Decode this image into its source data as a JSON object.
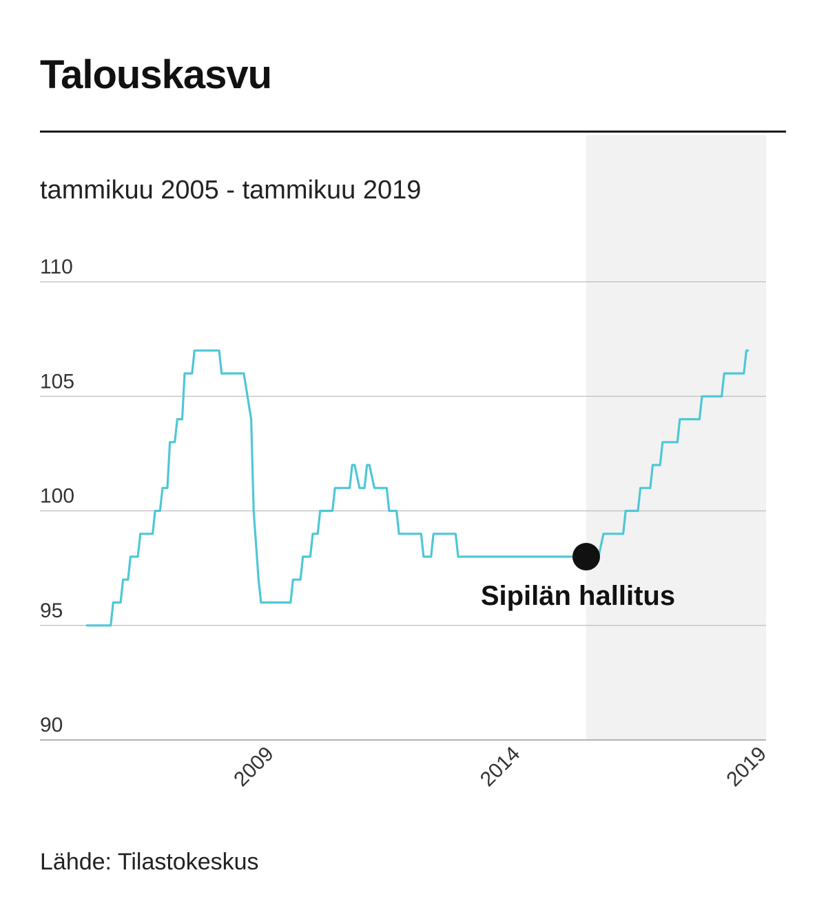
{
  "chart_data": {
    "type": "line",
    "title": "Talouskasvu",
    "subtitle": "tammikuu 2005 - tammikuu 2019",
    "source": "Lähde: Tilastokeskus",
    "ylim": [
      90,
      110
    ],
    "yticks": [
      90,
      95,
      100,
      105,
      110
    ],
    "xlim": [
      2005.2,
      2019.0
    ],
    "xticks": [
      2009,
      2014,
      2019
    ],
    "grid": true,
    "line_color": "#4ec7d6",
    "shade_color": "#f2f2f2",
    "shaded_period": {
      "start": 2015.35,
      "end": 2019.0
    },
    "annotation": {
      "label": "Sipilän hallitus",
      "x": 2015.35,
      "y": 98
    },
    "series": [
      {
        "points": [
          [
            2005.2,
            95
          ],
          [
            2005.7,
            95
          ],
          [
            2005.75,
            96
          ],
          [
            2005.9,
            96
          ],
          [
            2005.95,
            97
          ],
          [
            2006.05,
            97
          ],
          [
            2006.1,
            98
          ],
          [
            2006.25,
            98
          ],
          [
            2006.3,
            99
          ],
          [
            2006.55,
            99
          ],
          [
            2006.6,
            100
          ],
          [
            2006.7,
            100
          ],
          [
            2006.75,
            101
          ],
          [
            2006.85,
            101
          ],
          [
            2006.9,
            103
          ],
          [
            2007.0,
            103
          ],
          [
            2007.05,
            104
          ],
          [
            2007.15,
            104
          ],
          [
            2007.2,
            106
          ],
          [
            2007.35,
            106
          ],
          [
            2007.4,
            107
          ],
          [
            2007.9,
            107
          ],
          [
            2007.95,
            106
          ],
          [
            2008.4,
            106
          ],
          [
            2008.55,
            104
          ],
          [
            2008.6,
            100
          ],
          [
            2008.7,
            97
          ],
          [
            2008.75,
            96
          ],
          [
            2009.35,
            96
          ],
          [
            2009.4,
            97
          ],
          [
            2009.55,
            97
          ],
          [
            2009.6,
            98
          ],
          [
            2009.75,
            98
          ],
          [
            2009.8,
            99
          ],
          [
            2009.9,
            99
          ],
          [
            2009.95,
            100
          ],
          [
            2010.2,
            100
          ],
          [
            2010.25,
            101
          ],
          [
            2010.55,
            101
          ],
          [
            2010.6,
            102
          ],
          [
            2010.65,
            102
          ],
          [
            2010.75,
            101
          ],
          [
            2010.85,
            101
          ],
          [
            2010.9,
            102
          ],
          [
            2010.95,
            102
          ],
          [
            2011.05,
            101
          ],
          [
            2011.3,
            101
          ],
          [
            2011.35,
            100
          ],
          [
            2011.5,
            100
          ],
          [
            2011.55,
            99
          ],
          [
            2012.0,
            99
          ],
          [
            2012.05,
            98
          ],
          [
            2012.2,
            98
          ],
          [
            2012.25,
            99
          ],
          [
            2012.7,
            99
          ],
          [
            2012.75,
            98
          ],
          [
            2015.6,
            98
          ],
          [
            2015.7,
            99
          ],
          [
            2016.1,
            99
          ],
          [
            2016.15,
            100
          ],
          [
            2016.4,
            100
          ],
          [
            2016.45,
            101
          ],
          [
            2016.65,
            101
          ],
          [
            2016.7,
            102
          ],
          [
            2016.85,
            102
          ],
          [
            2016.9,
            103
          ],
          [
            2017.2,
            103
          ],
          [
            2017.25,
            104
          ],
          [
            2017.65,
            104
          ],
          [
            2017.7,
            105
          ],
          [
            2018.1,
            105
          ],
          [
            2018.15,
            106
          ],
          [
            2018.55,
            106
          ],
          [
            2018.6,
            107
          ],
          [
            2018.65,
            107
          ]
        ]
      }
    ]
  }
}
